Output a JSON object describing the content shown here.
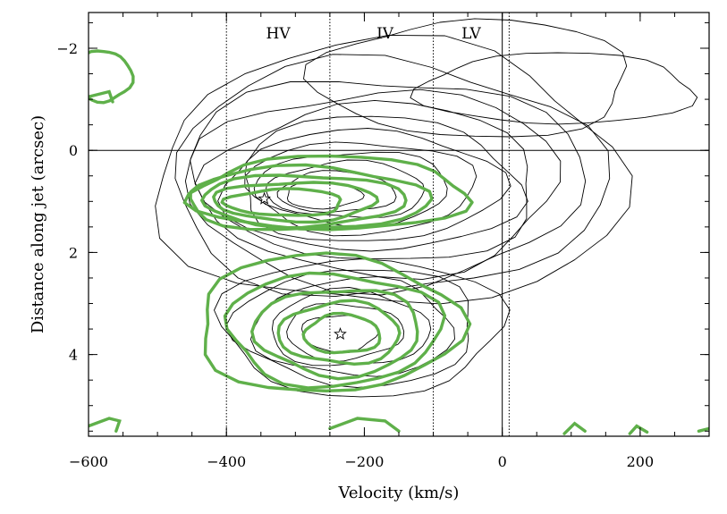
{
  "chart_data": {
    "type": "contour",
    "xlabel": "Velocity (km/s)",
    "ylabel": "Distance along jet (arcsec)",
    "xlim": [
      -600,
      300
    ],
    "ylim": [
      5.6,
      -2.7
    ],
    "y_inverted": true,
    "x_ticks": [
      -600,
      -400,
      -200,
      0,
      200
    ],
    "x_tick_labels": [
      "−600",
      "−400",
      "−200",
      "0",
      "200"
    ],
    "y_ticks": [
      -2,
      0,
      2,
      4
    ],
    "y_tick_labels": [
      "−2",
      "0",
      "2",
      "4"
    ],
    "reference_lines": {
      "horizontal_solid": [
        0
      ],
      "vertical_solid": [
        0
      ],
      "vertical_dotted": [
        -400,
        -250,
        -100,
        10
      ]
    },
    "region_labels": [
      {
        "text": "HV",
        "velocity": -325
      },
      {
        "text": "IV",
        "velocity": -170
      },
      {
        "text": "LV",
        "velocity": -45
      }
    ],
    "markers": [
      {
        "symbol": "star",
        "velocity": -345,
        "distance": 0.95
      },
      {
        "symbol": "star",
        "velocity": -235,
        "distance": 3.6
      }
    ],
    "series": [
      {
        "color": "#000000",
        "line_width": 0.9,
        "contours": [
          {
            "center_v": -165,
            "center_d": 0.5,
            "rx": 340,
            "ry": 2.6
          },
          {
            "center_v": -170,
            "center_d": 0.55,
            "rx": 315,
            "ry": 2.3
          },
          {
            "center_v": -175,
            "center_d": 0.6,
            "rx": 290,
            "ry": 2.05
          },
          {
            "center_v": -180,
            "center_d": 0.62,
            "rx": 265,
            "ry": 1.8
          },
          {
            "center_v": -185,
            "center_d": 0.65,
            "rx": 240,
            "ry": 1.55
          },
          {
            "center_v": -190,
            "center_d": 0.68,
            "rx": 215,
            "ry": 1.32
          },
          {
            "center_v": -195,
            "center_d": 0.7,
            "rx": 190,
            "ry": 1.1
          },
          {
            "center_v": -205,
            "center_d": 0.72,
            "rx": 165,
            "ry": 0.9
          },
          {
            "center_v": -215,
            "center_d": 0.74,
            "rx": 140,
            "ry": 0.72
          },
          {
            "center_v": -225,
            "center_d": 0.78,
            "rx": 115,
            "ry": 0.55
          },
          {
            "center_v": -240,
            "center_d": 0.82,
            "rx": 85,
            "ry": 0.4
          },
          {
            "center_v": -260,
            "center_d": 0.88,
            "rx": 55,
            "ry": 0.26
          },
          {
            "center_v": -205,
            "center_d": 3.45,
            "rx": 205,
            "ry": 1.35
          },
          {
            "center_v": -210,
            "center_d": 3.45,
            "rx": 175,
            "ry": 1.15
          },
          {
            "center_v": -215,
            "center_d": 3.48,
            "rx": 145,
            "ry": 0.95
          },
          {
            "center_v": -222,
            "center_d": 3.5,
            "rx": 115,
            "ry": 0.75
          },
          {
            "center_v": -230,
            "center_d": 3.55,
            "rx": 85,
            "ry": 0.55
          },
          {
            "center_v": -236,
            "center_d": 3.58,
            "rx": 55,
            "ry": 0.36
          },
          {
            "center_v": -40,
            "center_d": -1.4,
            "rx": 230,
            "ry": 1.15
          },
          {
            "center_v": 80,
            "center_d": -1.2,
            "rx": 200,
            "ry": 0.7
          }
        ]
      },
      {
        "color": "#5fb04a",
        "line_width": 3.4,
        "contours": [
          {
            "center_v": -285,
            "center_d": 0.95,
            "rx": 175,
            "ry": 0.62
          },
          {
            "center_v": -290,
            "center_d": 0.98,
            "rx": 148,
            "ry": 0.5
          },
          {
            "center_v": -300,
            "center_d": 1.0,
            "rx": 118,
            "ry": 0.38
          },
          {
            "center_v": -315,
            "center_d": 1.02,
            "rx": 85,
            "ry": 0.26
          },
          {
            "center_v": -250,
            "center_d": 0.85,
            "rx": 200,
            "ry": 0.72
          },
          {
            "center_v": -255,
            "center_d": 3.4,
            "rx": 190,
            "ry": 1.35
          },
          {
            "center_v": -245,
            "center_d": 3.5,
            "rx": 155,
            "ry": 1.1
          },
          {
            "center_v": -238,
            "center_d": 3.55,
            "rx": 120,
            "ry": 0.85
          },
          {
            "center_v": -235,
            "center_d": 3.58,
            "rx": 88,
            "ry": 0.6
          },
          {
            "center_v": -232,
            "center_d": 3.6,
            "rx": 55,
            "ry": 0.38
          },
          {
            "center_v": -578,
            "center_d": -1.45,
            "rx": 40,
            "ry": 0.5
          }
        ],
        "fragments": [
          {
            "v": [
              -600,
              -570,
              -555,
              -560
            ],
            "d": [
              5.4,
              5.25,
              5.3,
              5.5
            ]
          },
          {
            "v": [
              -250,
              -210,
              -170,
              -150
            ],
            "d": [
              5.45,
              5.25,
              5.3,
              5.5
            ]
          },
          {
            "v": [
              90,
              105,
              120
            ],
            "d": [
              5.55,
              5.35,
              5.5
            ]
          },
          {
            "v": [
              185,
              195,
              210
            ],
            "d": [
              5.55,
              5.4,
              5.52
            ]
          },
          {
            "v": [
              285,
              300
            ],
            "d": [
              5.5,
              5.45
            ]
          },
          {
            "v": [
              -600,
              -570,
              -565
            ],
            "d": [
              -1.05,
              -1.15,
              -0.95
            ]
          }
        ]
      }
    ]
  }
}
